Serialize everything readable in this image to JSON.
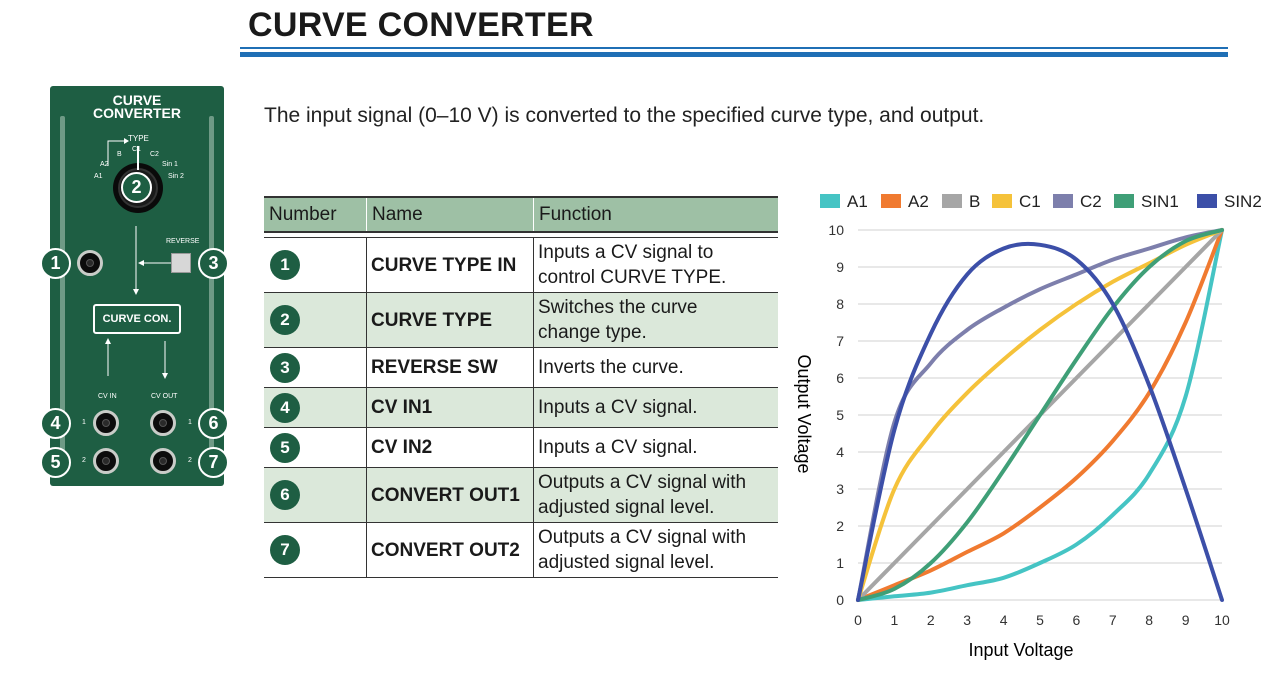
{
  "header": {
    "title": "CURVE CONVERTER"
  },
  "intro": "The input signal (0–10 V) is converted to the specified curve type, and output.",
  "panel": {
    "title_line1": "CURVE",
    "title_line2": "CONVERTER",
    "type_label": "TYPE",
    "knob_positions": [
      "A1",
      "A2",
      "B",
      "C1",
      "C2",
      "Sin 1",
      "Sin 2"
    ],
    "reverse_label": "REVERSE",
    "block_label": "CURVE CON.",
    "cv_in_label": "CV IN",
    "cv_out_label": "CV OUT",
    "jack_num_1": "1",
    "jack_num_2": "2",
    "colors": {
      "panel": "#1e5e43"
    }
  },
  "table": {
    "headers": [
      "Number",
      "Name",
      "Function"
    ],
    "rows": [
      {
        "num": "1",
        "name": "CURVE TYPE IN",
        "func_line1": "Inputs a CV signal to",
        "func_line2": "control CURVE TYPE."
      },
      {
        "num": "2",
        "name": "CURVE TYPE",
        "func_line1": "Switches the curve",
        "func_line2": "change type."
      },
      {
        "num": "3",
        "name": "REVERSE SW",
        "func_line1": "Inverts the curve.",
        "func_line2": ""
      },
      {
        "num": "4",
        "name": "CV IN1",
        "func_line1": "Inputs a CV signal.",
        "func_line2": ""
      },
      {
        "num": "5",
        "name": "CV IN2",
        "func_line1": "Inputs a CV signal.",
        "func_line2": ""
      },
      {
        "num": "6",
        "name": "CONVERT OUT1",
        "func_line1": "Outputs a CV signal with",
        "func_line2": "adjusted signal level."
      },
      {
        "num": "7",
        "name": "CONVERT OUT2",
        "func_line1": "Outputs a CV signal with",
        "func_line2": "adjusted signal level."
      }
    ]
  },
  "chart_data": {
    "type": "line",
    "xlabel": "Input Voltage",
    "ylabel": "Output Voltage",
    "xlim": [
      0,
      10
    ],
    "ylim": [
      0,
      10
    ],
    "xticks": [
      0,
      1,
      2,
      3,
      4,
      5,
      6,
      7,
      8,
      9,
      10
    ],
    "yticks": [
      0,
      1,
      2,
      3,
      4,
      5,
      6,
      7,
      8,
      9,
      10
    ],
    "grid": true,
    "legend": "top",
    "x": [
      0,
      1,
      2,
      3,
      4,
      5,
      6,
      7,
      8,
      9,
      10
    ],
    "series": [
      {
        "name": "A1",
        "color": "#45c4c4",
        "values": [
          0,
          0.1,
          0.2,
          0.4,
          0.6,
          1.0,
          1.5,
          2.3,
          3.4,
          5.5,
          10
        ]
      },
      {
        "name": "A2",
        "color": "#f07a30",
        "values": [
          0,
          0.4,
          0.8,
          1.3,
          1.8,
          2.5,
          3.3,
          4.3,
          5.6,
          7.5,
          10
        ]
      },
      {
        "name": "B",
        "color": "#a6a6a6",
        "values": [
          0,
          1,
          2,
          3,
          4,
          5,
          6,
          7,
          8,
          9,
          10
        ]
      },
      {
        "name": "C1",
        "color": "#f5c23a",
        "values": [
          0,
          3.0,
          4.5,
          5.6,
          6.5,
          7.3,
          8.0,
          8.6,
          9.1,
          9.6,
          10
        ]
      },
      {
        "name": "C2",
        "color": "#7d7fac",
        "values": [
          0,
          4.8,
          6.4,
          7.3,
          7.9,
          8.4,
          8.8,
          9.2,
          9.5,
          9.8,
          10
        ]
      },
      {
        "name": "SIN1",
        "color": "#3f9f77",
        "values": [
          0,
          0.3,
          1.0,
          2.1,
          3.5,
          5.0,
          6.5,
          7.9,
          9.0,
          9.7,
          10
        ]
      },
      {
        "name": "SIN2",
        "color": "#3c4fa8",
        "values": [
          0,
          4.6,
          7.2,
          8.8,
          9.5,
          9.6,
          9.2,
          8.0,
          5.8,
          3.0,
          0
        ]
      }
    ]
  }
}
